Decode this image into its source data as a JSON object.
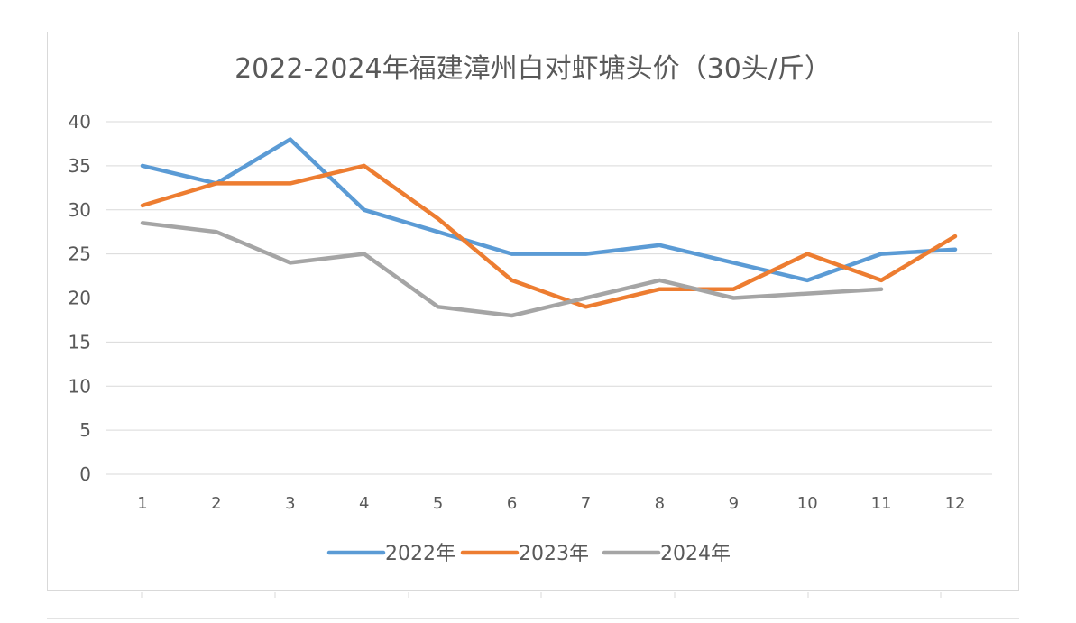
{
  "chart_data": {
    "type": "line",
    "title": "2022-2024年福建漳州白对虾塘头价（30头/斤）",
    "xlabel": "",
    "ylabel": "",
    "categories": [
      "1",
      "2",
      "3",
      "4",
      "5",
      "6",
      "7",
      "8",
      "9",
      "10",
      "11",
      "12"
    ],
    "ylim": [
      0,
      40
    ],
    "yticks": [
      0,
      5,
      10,
      15,
      20,
      25,
      30,
      35,
      40
    ],
    "grid": true,
    "legend_position": "bottom",
    "series": [
      {
        "name": "2022年",
        "color": "#5b9bd5",
        "values": [
          35,
          33,
          38,
          30,
          27.5,
          25,
          25,
          26,
          24,
          22,
          25,
          25.5
        ]
      },
      {
        "name": "2023年",
        "color": "#ed7d31",
        "values": [
          30.5,
          33,
          33,
          35,
          29,
          22,
          19,
          21,
          21,
          25,
          22,
          27
        ]
      },
      {
        "name": "2024年",
        "color": "#a5a5a5",
        "values": [
          28.5,
          27.5,
          24,
          25,
          19,
          18,
          20,
          22,
          20,
          20.5,
          21,
          null
        ]
      }
    ]
  }
}
